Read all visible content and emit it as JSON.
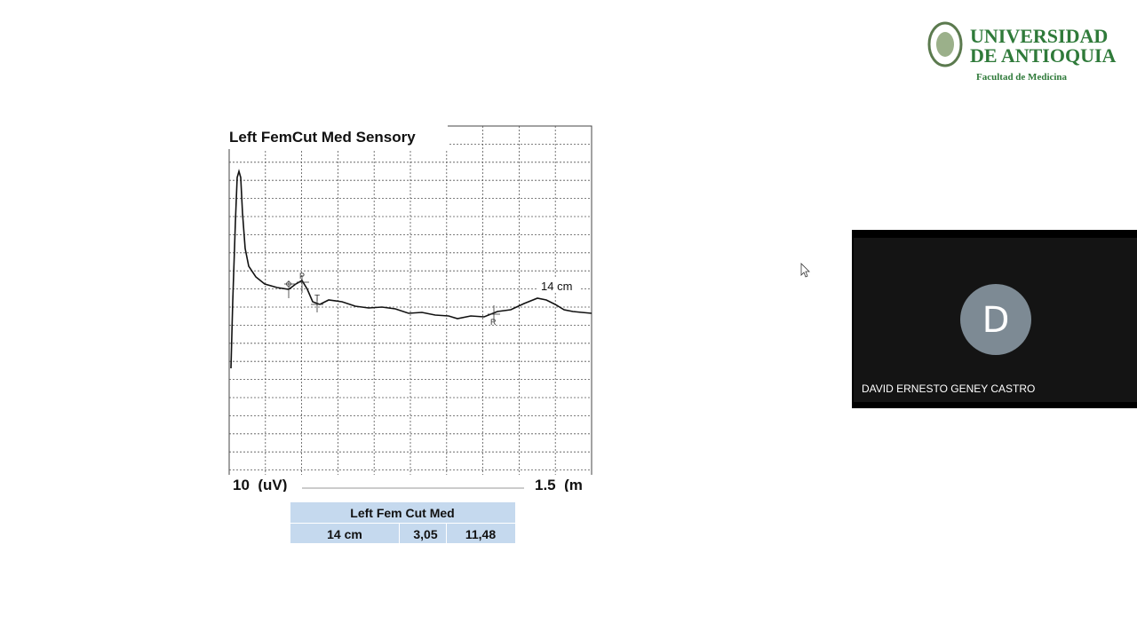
{
  "logo": {
    "line1": "UNIVERSIDAD",
    "line2": "DE ANTIOQUIA",
    "subtitle": "Facultad de Medicina"
  },
  "slide": {
    "trace": {
      "title": "Left FemCut Med Sensory",
      "annotation": "14 cm",
      "markers": [
        "P",
        "T",
        "R"
      ],
      "y_scale": "10  (uV)",
      "x_scale": "1.5  (m"
    },
    "table": {
      "header": "Left Fem Cut Med",
      "rows": [
        [
          "14 cm",
          "3,05",
          "11,48"
        ]
      ]
    }
  },
  "participant": {
    "initial": "D",
    "name": "DAVID ERNESTO GENEY CASTRO"
  }
}
